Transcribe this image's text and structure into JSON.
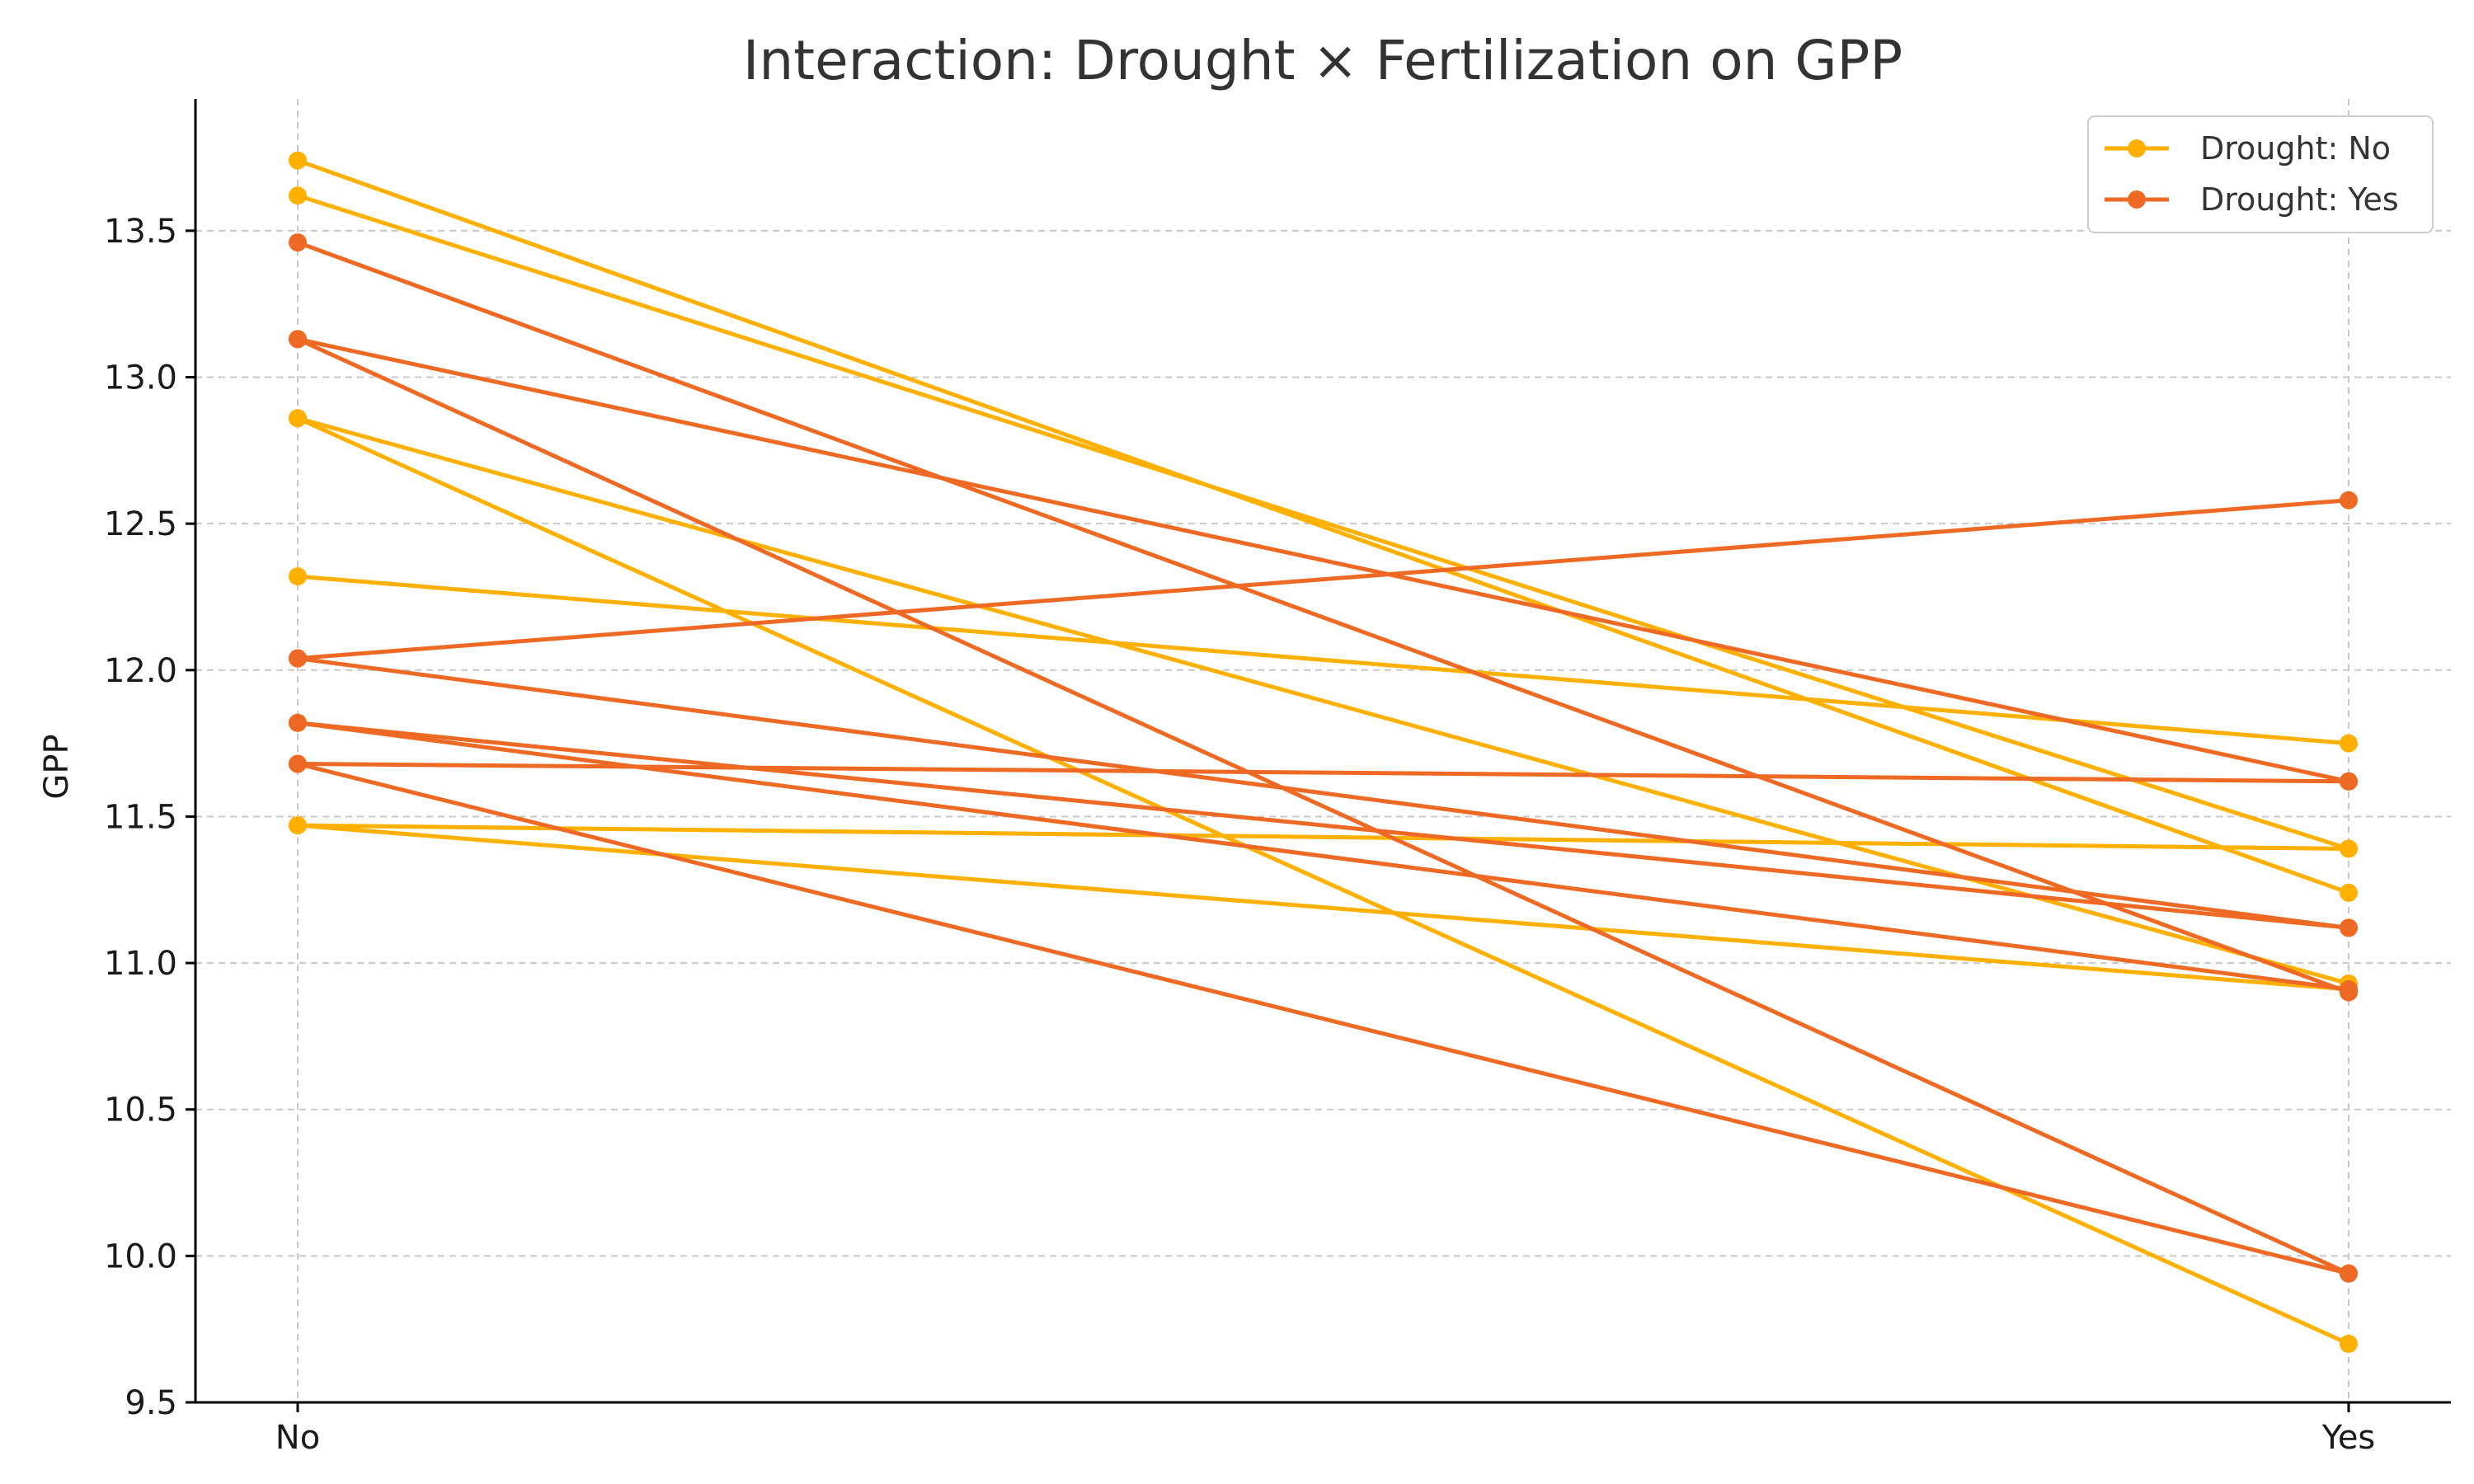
{
  "chart_data": {
    "type": "line",
    "title": "Interaction: Drought × Fertilization on GPP",
    "xlabel": "",
    "ylabel": "GPP",
    "categories": [
      "No",
      "Yes"
    ],
    "ylim": [
      9.5,
      13.95
    ],
    "yticks": [
      "9.5",
      "10.0",
      "10.5",
      "11.0",
      "11.5",
      "12.0",
      "12.5",
      "13.0",
      "13.5"
    ],
    "grid": true,
    "legend_position": "top-right",
    "legend": [
      {
        "label": "Drought: No",
        "color": "#FFB000"
      },
      {
        "label": "Drought: Yes",
        "color": "#EE6A24"
      }
    ],
    "series": [
      {
        "group": "Drought: No",
        "color": "#FFB000",
        "values": [
          13.74,
          11.24
        ]
      },
      {
        "group": "Drought: No",
        "color": "#FFB000",
        "values": [
          13.62,
          11.39
        ]
      },
      {
        "group": "Drought: No",
        "color": "#FFB000",
        "values": [
          12.86,
          10.93
        ]
      },
      {
        "group": "Drought: No",
        "color": "#FFB000",
        "values": [
          12.86,
          9.7
        ]
      },
      {
        "group": "Drought: No",
        "color": "#FFB000",
        "values": [
          12.32,
          11.75
        ]
      },
      {
        "group": "Drought: No",
        "color": "#FFB000",
        "values": [
          11.47,
          11.39
        ]
      },
      {
        "group": "Drought: No",
        "color": "#FFB000",
        "values": [
          11.47,
          10.91
        ]
      },
      {
        "group": "Drought: Yes",
        "color": "#EE6A24",
        "values": [
          13.46,
          10.9
        ]
      },
      {
        "group": "Drought: Yes",
        "color": "#EE6A24",
        "values": [
          13.13,
          11.62
        ]
      },
      {
        "group": "Drought: Yes",
        "color": "#EE6A24",
        "values": [
          13.13,
          9.94
        ]
      },
      {
        "group": "Drought: Yes",
        "color": "#EE6A24",
        "values": [
          12.04,
          12.58
        ]
      },
      {
        "group": "Drought: Yes",
        "color": "#EE6A24",
        "values": [
          12.04,
          11.12
        ]
      },
      {
        "group": "Drought: Yes",
        "color": "#EE6A24",
        "values": [
          11.82,
          11.12
        ]
      },
      {
        "group": "Drought: Yes",
        "color": "#EE6A24",
        "values": [
          11.82,
          10.91
        ]
      },
      {
        "group": "Drought: Yes",
        "color": "#EE6A24",
        "values": [
          11.68,
          11.62
        ]
      },
      {
        "group": "Drought: Yes",
        "color": "#EE6A24",
        "values": [
          11.68,
          9.94
        ]
      }
    ]
  }
}
